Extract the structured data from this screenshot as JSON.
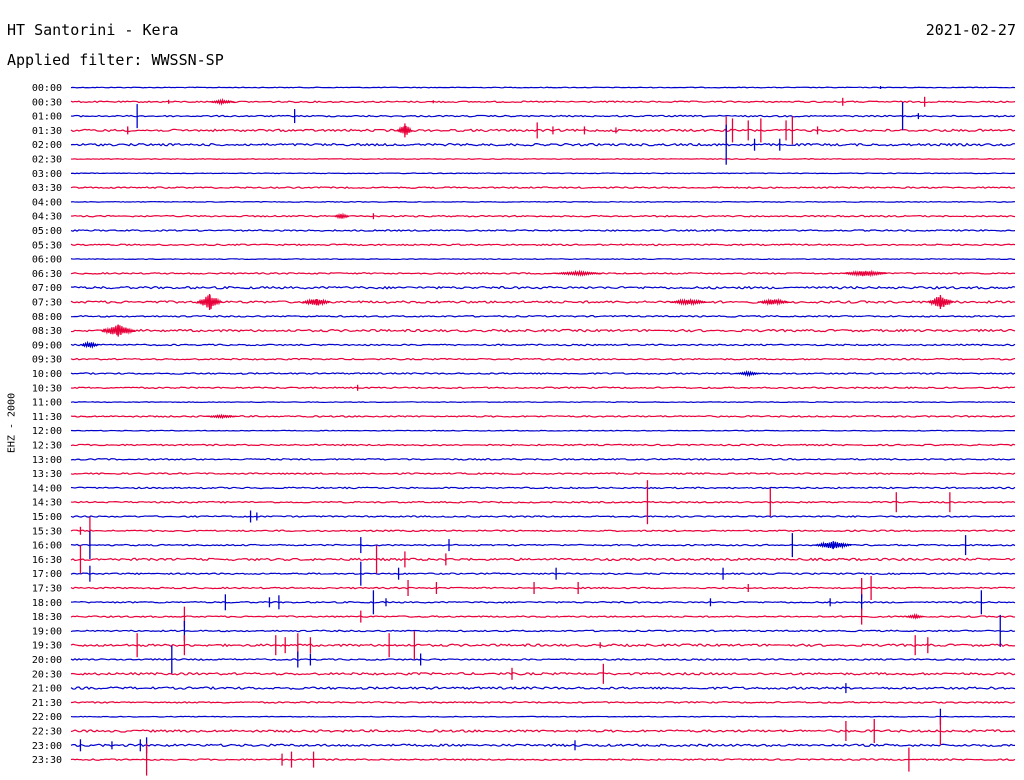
{
  "header": {
    "title": "HT Santorini - Kera",
    "date": "2021-02-27",
    "filter": "Applied filter: WWSSN-SP"
  },
  "side_label": "EHZ - 2000",
  "colors": {
    "even_row": "#0000cc",
    "odd_row": "#e8003a",
    "background": "#ffffff"
  },
  "chart_data": {
    "type": "line",
    "title": "HT Santorini - Kera",
    "ylabel": "EHZ - 2000",
    "row_labels": [
      "00:00",
      "00:30",
      "01:00",
      "01:30",
      "02:00",
      "02:30",
      "03:00",
      "03:30",
      "04:00",
      "04:30",
      "05:00",
      "05:30",
      "06:00",
      "06:30",
      "07:00",
      "07:30",
      "08:00",
      "08:30",
      "09:00",
      "09:30",
      "10:00",
      "10:30",
      "11:00",
      "11:30",
      "12:00",
      "12:30",
      "13:00",
      "13:30",
      "14:00",
      "14:30",
      "15:00",
      "15:30",
      "16:00",
      "16:30",
      "17:00",
      "17:30",
      "18:00",
      "18:30",
      "19:00",
      "19:30",
      "20:00",
      "20:30",
      "21:00",
      "21:30",
      "22:00",
      "22:30",
      "23:00",
      "23:30"
    ],
    "row_minutes": 30,
    "noise_level": [
      0,
      1,
      1,
      2,
      2,
      0,
      0,
      1,
      0,
      1,
      1,
      1,
      0,
      1,
      2,
      2,
      1,
      2,
      1,
      1,
      1,
      1,
      0,
      1,
      0,
      1,
      1,
      1,
      1,
      1,
      1,
      1,
      1,
      2,
      1,
      1,
      1,
      1,
      1,
      2,
      1,
      2,
      2,
      1,
      0,
      2,
      2,
      1
    ],
    "events": [
      {
        "row": 0,
        "minute": 25.7,
        "amp": 1.5
      },
      {
        "row": 1,
        "minute": 3.1,
        "amp": 2
      },
      {
        "row": 1,
        "minute": 11.5,
        "amp": 1.5
      },
      {
        "row": 1,
        "minute": 24.5,
        "amp": 4
      },
      {
        "row": 1,
        "minute": 27.1,
        "amp": 5
      },
      {
        "row": 2,
        "minute": 2.1,
        "amp": 12
      },
      {
        "row": 2,
        "minute": 7.1,
        "amp": 7
      },
      {
        "row": 2,
        "minute": 26.4,
        "amp": 14
      },
      {
        "row": 2,
        "minute": 26.9,
        "amp": 3
      },
      {
        "row": 3,
        "minute": 1.8,
        "amp": 2
      },
      {
        "row": 3,
        "minute": 1.8,
        "amp": 4
      },
      {
        "row": 3,
        "minute": 10.6,
        "amp": 7
      },
      {
        "row": 3,
        "minute": 14.8,
        "amp": 8
      },
      {
        "row": 3,
        "minute": 15.3,
        "amp": 4
      },
      {
        "row": 3,
        "minute": 16.3,
        "amp": 4
      },
      {
        "row": 3,
        "minute": 17.3,
        "amp": 3
      },
      {
        "row": 3,
        "minute": 20.8,
        "amp": 14
      },
      {
        "row": 3,
        "minute": 21.0,
        "amp": 12
      },
      {
        "row": 3,
        "minute": 21.5,
        "amp": 10
      },
      {
        "row": 3,
        "minute": 21.9,
        "amp": 12
      },
      {
        "row": 3,
        "minute": 22.7,
        "amp": 10
      },
      {
        "row": 3,
        "minute": 22.9,
        "amp": 14
      },
      {
        "row": 3,
        "minute": 23.7,
        "amp": 4
      },
      {
        "row": 4,
        "minute": 20.8,
        "amp": 20
      },
      {
        "row": 4,
        "minute": 21.7,
        "amp": 6
      },
      {
        "row": 4,
        "minute": 22.5,
        "amp": 6
      },
      {
        "row": 9,
        "minute": 9.6,
        "amp": 3
      },
      {
        "row": 15,
        "minute": 4.4,
        "amp": 8
      },
      {
        "row": 15,
        "minute": 7.8,
        "amp": 3
      },
      {
        "row": 15,
        "minute": 27.6,
        "amp": 7
      },
      {
        "row": 17,
        "minute": 1.5,
        "amp": 6
      },
      {
        "row": 21,
        "minute": 9.1,
        "amp": 3
      },
      {
        "row": 29,
        "minute": 18.3,
        "amp": 22
      },
      {
        "row": 29,
        "minute": 22.2,
        "amp": 14
      },
      {
        "row": 29,
        "minute": 26.2,
        "amp": 10
      },
      {
        "row": 29,
        "minute": 27.9,
        "amp": 10
      },
      {
        "row": 30,
        "minute": 5.7,
        "amp": 6
      },
      {
        "row": 30,
        "minute": 5.9,
        "amp": 4
      },
      {
        "row": 31,
        "minute": 0.3,
        "amp": 4
      },
      {
        "row": 31,
        "minute": 0.6,
        "amp": 14
      },
      {
        "row": 32,
        "minute": 0.6,
        "amp": 14
      },
      {
        "row": 32,
        "minute": 9.2,
        "amp": 8
      },
      {
        "row": 32,
        "minute": 12.0,
        "amp": 6
      },
      {
        "row": 32,
        "minute": 22.9,
        "amp": 12
      },
      {
        "row": 32,
        "minute": 24.2,
        "amp": 4
      },
      {
        "row": 32,
        "minute": 28.4,
        "amp": 10
      },
      {
        "row": 33,
        "minute": 0.3,
        "amp": 14
      },
      {
        "row": 33,
        "minute": 9.7,
        "amp": 14
      },
      {
        "row": 33,
        "minute": 10.6,
        "amp": 8
      },
      {
        "row": 33,
        "minute": 11.9,
        "amp": 6
      },
      {
        "row": 34,
        "minute": 0.6,
        "amp": 8
      },
      {
        "row": 34,
        "minute": 9.2,
        "amp": 12
      },
      {
        "row": 34,
        "minute": 10.4,
        "amp": 6
      },
      {
        "row": 34,
        "minute": 15.4,
        "amp": 6
      },
      {
        "row": 34,
        "minute": 20.7,
        "amp": 6
      },
      {
        "row": 35,
        "minute": 10.7,
        "amp": 8
      },
      {
        "row": 35,
        "minute": 11.6,
        "amp": 6
      },
      {
        "row": 35,
        "minute": 14.7,
        "amp": 6
      },
      {
        "row": 35,
        "minute": 16.1,
        "amp": 6
      },
      {
        "row": 35,
        "minute": 21.5,
        "amp": 4
      },
      {
        "row": 35,
        "minute": 25.1,
        "amp": 10
      },
      {
        "row": 35,
        "minute": 25.4,
        "amp": 12
      },
      {
        "row": 36,
        "minute": 4.9,
        "amp": 8
      },
      {
        "row": 36,
        "minute": 6.3,
        "amp": 5
      },
      {
        "row": 36,
        "minute": 6.6,
        "amp": 7
      },
      {
        "row": 36,
        "minute": 9.6,
        "amp": 12
      },
      {
        "row": 36,
        "minute": 10.0,
        "amp": 4
      },
      {
        "row": 36,
        "minute": 20.3,
        "amp": 4
      },
      {
        "row": 36,
        "minute": 24.1,
        "amp": 4
      },
      {
        "row": 36,
        "minute": 25.1,
        "amp": 8
      },
      {
        "row": 36,
        "minute": 28.9,
        "amp": 12
      },
      {
        "row": 37,
        "minute": 3.6,
        "amp": 10
      },
      {
        "row": 37,
        "minute": 9.2,
        "amp": 6
      },
      {
        "row": 37,
        "minute": 25.1,
        "amp": 8
      },
      {
        "row": 38,
        "minute": 3.6,
        "amp": 10
      },
      {
        "row": 38,
        "minute": 29.5,
        "amp": 16
      },
      {
        "row": 39,
        "minute": 2.1,
        "amp": 12
      },
      {
        "row": 39,
        "minute": 3.6,
        "amp": 10
      },
      {
        "row": 39,
        "minute": 6.5,
        "amp": 10
      },
      {
        "row": 39,
        "minute": 6.8,
        "amp": 8
      },
      {
        "row": 39,
        "minute": 7.2,
        "amp": 12
      },
      {
        "row": 39,
        "minute": 7.6,
        "amp": 8
      },
      {
        "row": 39,
        "minute": 10.1,
        "amp": 12
      },
      {
        "row": 39,
        "minute": 10.9,
        "amp": 14
      },
      {
        "row": 39,
        "minute": 16.8,
        "amp": 3
      },
      {
        "row": 39,
        "minute": 26.8,
        "amp": 10
      },
      {
        "row": 39,
        "minute": 27.2,
        "amp": 8
      },
      {
        "row": 40,
        "minute": 3.2,
        "amp": 14
      },
      {
        "row": 40,
        "minute": 7.2,
        "amp": 8
      },
      {
        "row": 40,
        "minute": 7.6,
        "amp": 6
      },
      {
        "row": 40,
        "minute": 11.1,
        "amp": 6
      },
      {
        "row": 41,
        "minute": 14.0,
        "amp": 6
      },
      {
        "row": 41,
        "minute": 16.9,
        "amp": 10
      },
      {
        "row": 42,
        "minute": 24.6,
        "amp": 5
      },
      {
        "row": 44,
        "minute": 27.6,
        "amp": 8
      },
      {
        "row": 45,
        "minute": 24.6,
        "amp": 10
      },
      {
        "row": 45,
        "minute": 25.5,
        "amp": 12
      },
      {
        "row": 45,
        "minute": 27.6,
        "amp": 14
      },
      {
        "row": 46,
        "minute": 0.3,
        "amp": 6
      },
      {
        "row": 46,
        "minute": 1.3,
        "amp": 4
      },
      {
        "row": 46,
        "minute": 2.2,
        "amp": 6
      },
      {
        "row": 46,
        "minute": 2.4,
        "amp": 8
      },
      {
        "row": 46,
        "minute": 16.0,
        "amp": 5
      },
      {
        "row": 47,
        "minute": 2.4,
        "amp": 16
      },
      {
        "row": 47,
        "minute": 6.7,
        "amp": 6
      },
      {
        "row": 47,
        "minute": 7.0,
        "amp": 8
      },
      {
        "row": 47,
        "minute": 7.7,
        "amp": 8
      },
      {
        "row": 47,
        "minute": 26.6,
        "amp": 12
      }
    ],
    "bursts": [
      {
        "row": 1,
        "minute": 4.8,
        "width": 0.8,
        "amp": 2
      },
      {
        "row": 3,
        "minute": 10.6,
        "width": 0.5,
        "amp": 6
      },
      {
        "row": 9,
        "minute": 8.6,
        "width": 0.5,
        "amp": 3
      },
      {
        "row": 13,
        "minute": 16.1,
        "width": 1.5,
        "amp": 2
      },
      {
        "row": 13,
        "minute": 25.2,
        "width": 1.4,
        "amp": 3
      },
      {
        "row": 15,
        "minute": 4.4,
        "width": 0.8,
        "amp": 8
      },
      {
        "row": 15,
        "minute": 7.8,
        "width": 0.9,
        "amp": 4
      },
      {
        "row": 15,
        "minute": 19.6,
        "width": 1.2,
        "amp": 3
      },
      {
        "row": 15,
        "minute": 22.3,
        "width": 1.0,
        "amp": 3
      },
      {
        "row": 15,
        "minute": 27.6,
        "width": 0.8,
        "amp": 7
      },
      {
        "row": 17,
        "minute": 1.5,
        "width": 1.1,
        "amp": 6
      },
      {
        "row": 18,
        "minute": 0.6,
        "width": 0.6,
        "amp": 3
      },
      {
        "row": 20,
        "minute": 21.5,
        "width": 0.8,
        "amp": 2
      },
      {
        "row": 23,
        "minute": 4.8,
        "width": 1.0,
        "amp": 1.5
      },
      {
        "row": 32,
        "minute": 24.2,
        "width": 1.2,
        "amp": 4
      },
      {
        "row": 37,
        "minute": 26.8,
        "width": 0.6,
        "amp": 2
      }
    ]
  }
}
